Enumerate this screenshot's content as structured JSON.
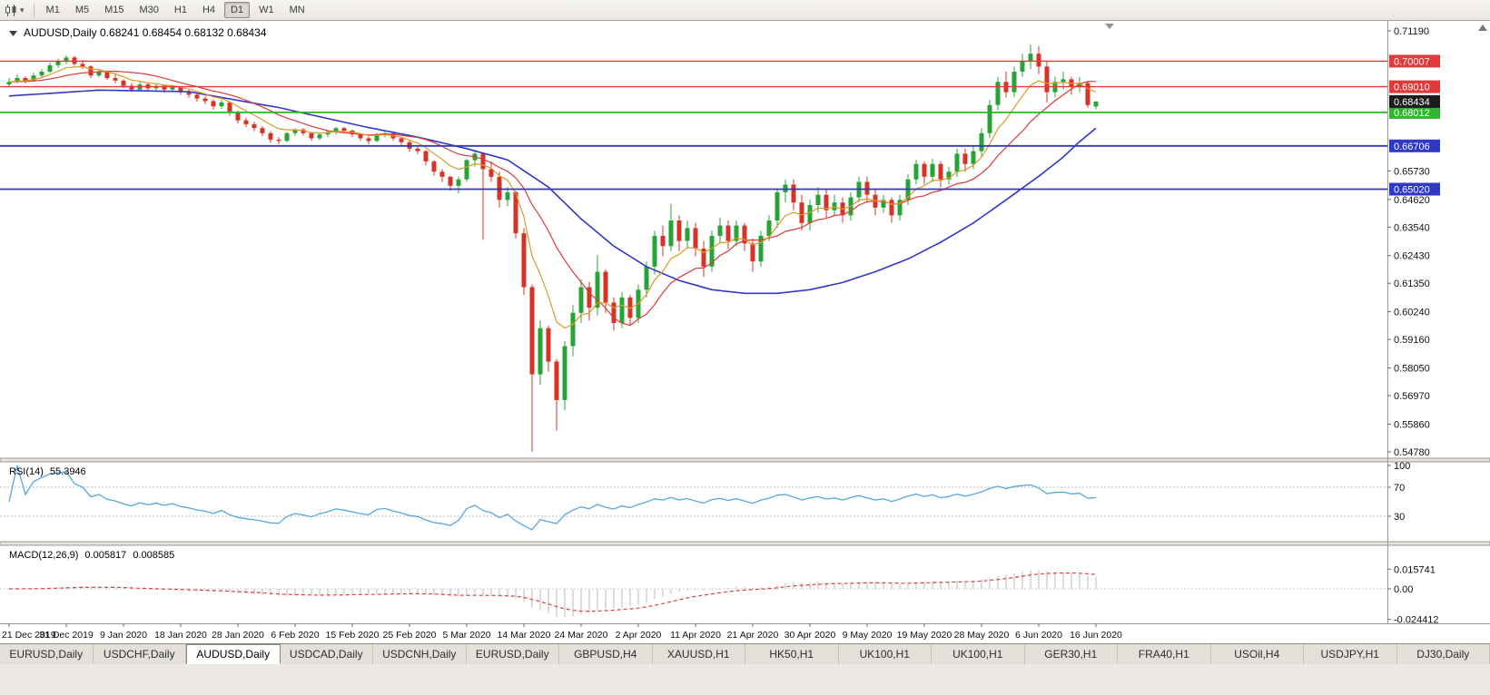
{
  "toolbar": {
    "icons": [
      {
        "name": "candlestick-chart-icon"
      },
      {
        "name": "chart-type-dropdown-caret",
        "glyph": "▾"
      }
    ],
    "timeframes": [
      {
        "label": "M1",
        "active": false
      },
      {
        "label": "M5",
        "active": false
      },
      {
        "label": "M15",
        "active": false
      },
      {
        "label": "M30",
        "active": false
      },
      {
        "label": "H1",
        "active": false
      },
      {
        "label": "H4",
        "active": false
      },
      {
        "label": "D1",
        "active": true
      },
      {
        "label": "W1",
        "active": false
      },
      {
        "label": "MN",
        "active": false
      }
    ]
  },
  "chart_data": {
    "type": "candlestick",
    "symbol": "AUDUSD",
    "period": "Daily",
    "title_text": "AUDUSD,Daily 0.68241 0.68454 0.68132 0.68434",
    "ohlc_display": {
      "open": "0.68241",
      "high": "0.68454",
      "low": "0.68132",
      "close": "0.68434"
    },
    "colors": {
      "bull": "#27a437",
      "bear": "#d63327",
      "background": "#ffffff"
    },
    "y_axis": {
      "max": 0.7119,
      "min": 0.5478,
      "ticks": [
        "0.71190",
        "0.65730",
        "0.64620",
        "0.63540",
        "0.62430",
        "0.61350",
        "0.60240",
        "0.59160",
        "0.58050",
        "0.56970",
        "0.55860",
        "0.54780"
      ]
    },
    "horizontal_lines": [
      {
        "label": "0.70007",
        "price": 0.70007,
        "color": "#e03a3a",
        "width": 1.4
      },
      {
        "label": "0.69010",
        "price": 0.6901,
        "color": "#e03a3a",
        "width": 1.4
      },
      {
        "label": "0.68012",
        "price": 0.68012,
        "color": "#2db52d",
        "width": 1.8
      },
      {
        "label": "0.66706",
        "price": 0.66706,
        "color": "#3038c8",
        "width": 1.8
      },
      {
        "label": "0.65020",
        "price": 0.6502,
        "color": "#3038c8",
        "width": 1.8
      }
    ],
    "price_marker": {
      "label": "0.68434",
      "price": 0.68434,
      "bg": "#1c1c1c"
    },
    "label_every": 7,
    "x_labels": [
      "21 Dec 2019",
      "31 Dec 2019",
      "9 Jan 2020",
      "18 Jan 2020",
      "28 Jan 2020",
      "6 Feb 2020",
      "15 Feb 2020",
      "25 Feb 2020",
      "5 Mar 2020",
      "14 Mar 2020",
      "24 Mar 2020",
      "2 Apr 2020",
      "11 Apr 2020",
      "21 Apr 2020",
      "30 Apr 2020",
      "9 May 2020",
      "19 May 2020",
      "28 May 2020",
      "6 Jun 2020",
      "16 Jun 2020"
    ],
    "candles": [
      [
        0.691,
        0.6935,
        0.69,
        0.692
      ],
      [
        0.692,
        0.695,
        0.6915,
        0.6935
      ],
      [
        0.6935,
        0.6942,
        0.6915,
        0.6925
      ],
      [
        0.6925,
        0.6955,
        0.692,
        0.6945
      ],
      [
        0.6945,
        0.697,
        0.6935,
        0.696
      ],
      [
        0.696,
        0.6995,
        0.6955,
        0.6985
      ],
      [
        0.6985,
        0.701,
        0.6975,
        0.7
      ],
      [
        0.7,
        0.7023,
        0.699,
        0.7015
      ],
      [
        0.7015,
        0.7022,
        0.6985,
        0.699
      ],
      [
        0.699,
        0.7005,
        0.697,
        0.698
      ],
      [
        0.698,
        0.6985,
        0.6935,
        0.6945
      ],
      [
        0.6945,
        0.697,
        0.6938,
        0.696
      ],
      [
        0.696,
        0.6965,
        0.6928,
        0.6935
      ],
      [
        0.6935,
        0.695,
        0.6915,
        0.6925
      ],
      [
        0.6925,
        0.693,
        0.6895,
        0.6905
      ],
      [
        0.6905,
        0.6915,
        0.688,
        0.689
      ],
      [
        0.689,
        0.692,
        0.6885,
        0.691
      ],
      [
        0.691,
        0.6918,
        0.6882,
        0.6895
      ],
      [
        0.6895,
        0.6915,
        0.6887,
        0.6905
      ],
      [
        0.6905,
        0.691,
        0.6878,
        0.689
      ],
      [
        0.689,
        0.6908,
        0.6883,
        0.69
      ],
      [
        0.69,
        0.6905,
        0.687,
        0.688
      ],
      [
        0.688,
        0.689,
        0.6858,
        0.687
      ],
      [
        0.687,
        0.6878,
        0.6843,
        0.6855
      ],
      [
        0.6855,
        0.6865,
        0.6833,
        0.6845
      ],
      [
        0.6845,
        0.6852,
        0.6812,
        0.6825
      ],
      [
        0.6825,
        0.685,
        0.6815,
        0.684
      ],
      [
        0.684,
        0.6845,
        0.6788,
        0.68
      ],
      [
        0.68,
        0.6808,
        0.6758,
        0.677
      ],
      [
        0.677,
        0.678,
        0.6743,
        0.6755
      ],
      [
        0.6755,
        0.6765,
        0.6728,
        0.674
      ],
      [
        0.674,
        0.6748,
        0.6708,
        0.672
      ],
      [
        0.672,
        0.6728,
        0.6683,
        0.6695
      ],
      [
        0.6695,
        0.6705,
        0.6678,
        0.669
      ],
      [
        0.669,
        0.6725,
        0.6685,
        0.672
      ],
      [
        0.672,
        0.674,
        0.671,
        0.6735
      ],
      [
        0.6735,
        0.674,
        0.671,
        0.672
      ],
      [
        0.672,
        0.6725,
        0.669,
        0.67
      ],
      [
        0.67,
        0.672,
        0.6693,
        0.6715
      ],
      [
        0.6715,
        0.673,
        0.6705,
        0.6725
      ],
      [
        0.6725,
        0.6745,
        0.6715,
        0.674
      ],
      [
        0.674,
        0.6745,
        0.672,
        0.673
      ],
      [
        0.673,
        0.6735,
        0.6705,
        0.6715
      ],
      [
        0.6715,
        0.672,
        0.669,
        0.67
      ],
      [
        0.67,
        0.6708,
        0.6678,
        0.669
      ],
      [
        0.669,
        0.672,
        0.6685,
        0.6715
      ],
      [
        0.6715,
        0.6728,
        0.6705,
        0.672
      ],
      [
        0.672,
        0.6725,
        0.669,
        0.67
      ],
      [
        0.67,
        0.6705,
        0.6675,
        0.6685
      ],
      [
        0.6685,
        0.669,
        0.6648,
        0.666
      ],
      [
        0.666,
        0.667,
        0.6638,
        0.665
      ],
      [
        0.665,
        0.6655,
        0.6595,
        0.661
      ],
      [
        0.661,
        0.6615,
        0.6555,
        0.657
      ],
      [
        0.657,
        0.658,
        0.653,
        0.655
      ],
      [
        0.655,
        0.6555,
        0.6495,
        0.6515
      ],
      [
        0.6515,
        0.655,
        0.6485,
        0.654
      ],
      [
        0.654,
        0.662,
        0.653,
        0.6615
      ],
      [
        0.6615,
        0.665,
        0.659,
        0.664
      ],
      [
        0.664,
        0.6645,
        0.6305,
        0.658
      ],
      [
        0.658,
        0.661,
        0.653,
        0.655
      ],
      [
        0.655,
        0.657,
        0.643,
        0.646
      ],
      [
        0.646,
        0.651,
        0.6435,
        0.649
      ],
      [
        0.649,
        0.6495,
        0.631,
        0.633
      ],
      [
        0.633,
        0.635,
        0.609,
        0.612
      ],
      [
        0.612,
        0.613,
        0.5478,
        0.578
      ],
      [
        0.578,
        0.599,
        0.574,
        0.596
      ],
      [
        0.596,
        0.597,
        0.579,
        0.583
      ],
      [
        0.583,
        0.584,
        0.556,
        0.568
      ],
      [
        0.568,
        0.591,
        0.564,
        0.589
      ],
      [
        0.589,
        0.605,
        0.585,
        0.602
      ],
      [
        0.602,
        0.615,
        0.598,
        0.612
      ],
      [
        0.612,
        0.614,
        0.599,
        0.604
      ],
      [
        0.604,
        0.6245,
        0.601,
        0.618
      ],
      [
        0.618,
        0.619,
        0.602,
        0.606
      ],
      [
        0.606,
        0.608,
        0.595,
        0.598
      ],
      [
        0.598,
        0.61,
        0.596,
        0.608
      ],
      [
        0.608,
        0.609,
        0.597,
        0.6
      ],
      [
        0.6,
        0.613,
        0.598,
        0.611
      ],
      [
        0.611,
        0.622,
        0.608,
        0.62
      ],
      [
        0.62,
        0.634,
        0.617,
        0.632
      ],
      [
        0.632,
        0.636,
        0.624,
        0.628
      ],
      [
        0.628,
        0.6445,
        0.626,
        0.638
      ],
      [
        0.638,
        0.64,
        0.626,
        0.63
      ],
      [
        0.63,
        0.638,
        0.627,
        0.635
      ],
      [
        0.635,
        0.637,
        0.624,
        0.627
      ],
      [
        0.627,
        0.63,
        0.616,
        0.62
      ],
      [
        0.62,
        0.634,
        0.618,
        0.632
      ],
      [
        0.632,
        0.639,
        0.629,
        0.636
      ],
      [
        0.636,
        0.638,
        0.627,
        0.63
      ],
      [
        0.63,
        0.638,
        0.628,
        0.636
      ],
      [
        0.636,
        0.637,
        0.626,
        0.629
      ],
      [
        0.629,
        0.631,
        0.618,
        0.622
      ],
      [
        0.622,
        0.634,
        0.62,
        0.632
      ],
      [
        0.632,
        0.64,
        0.63,
        0.638
      ],
      [
        0.638,
        0.65,
        0.635,
        0.649
      ],
      [
        0.649,
        0.654,
        0.645,
        0.652
      ],
      [
        0.652,
        0.654,
        0.642,
        0.645
      ],
      [
        0.645,
        0.648,
        0.634,
        0.637
      ],
      [
        0.637,
        0.646,
        0.634,
        0.644
      ],
      [
        0.644,
        0.651,
        0.641,
        0.648
      ],
      [
        0.648,
        0.65,
        0.639,
        0.642
      ],
      [
        0.642,
        0.648,
        0.64,
        0.645
      ],
      [
        0.645,
        0.647,
        0.637,
        0.64
      ],
      [
        0.64,
        0.649,
        0.638,
        0.647
      ],
      [
        0.647,
        0.655,
        0.645,
        0.653
      ],
      [
        0.653,
        0.655,
        0.645,
        0.648
      ],
      [
        0.648,
        0.65,
        0.64,
        0.643
      ],
      [
        0.643,
        0.648,
        0.641,
        0.646
      ],
      [
        0.646,
        0.647,
        0.637,
        0.64
      ],
      [
        0.64,
        0.648,
        0.638,
        0.646
      ],
      [
        0.646,
        0.656,
        0.644,
        0.654
      ],
      [
        0.654,
        0.6617,
        0.652,
        0.66
      ],
      [
        0.66,
        0.661,
        0.652,
        0.655
      ],
      [
        0.655,
        0.662,
        0.653,
        0.66
      ],
      [
        0.66,
        0.661,
        0.651,
        0.654
      ],
      [
        0.654,
        0.659,
        0.652,
        0.657
      ],
      [
        0.657,
        0.666,
        0.655,
        0.664
      ],
      [
        0.664,
        0.666,
        0.657,
        0.66
      ],
      [
        0.66,
        0.667,
        0.658,
        0.665
      ],
      [
        0.665,
        0.674,
        0.663,
        0.672
      ],
      [
        0.672,
        0.685,
        0.67,
        0.683
      ],
      [
        0.683,
        0.694,
        0.681,
        0.692
      ],
      [
        0.692,
        0.696,
        0.686,
        0.688
      ],
      [
        0.688,
        0.698,
        0.686,
        0.696
      ],
      [
        0.696,
        0.703,
        0.694,
        0.7
      ],
      [
        0.7,
        0.7065,
        0.697,
        0.703
      ],
      [
        0.703,
        0.706,
        0.695,
        0.698
      ],
      [
        0.698,
        0.7,
        0.684,
        0.688
      ],
      [
        0.688,
        0.694,
        0.686,
        0.692
      ],
      [
        0.692,
        0.696,
        0.689,
        0.693
      ],
      [
        0.693,
        0.694,
        0.687,
        0.69
      ],
      [
        0.69,
        0.694,
        0.688,
        0.6915
      ],
      [
        0.6915,
        0.692,
        0.682,
        0.683
      ],
      [
        0.68241,
        0.68454,
        0.68132,
        0.68434
      ]
    ],
    "moving_averages": {
      "fast": {
        "type": "ema",
        "period": 7,
        "color": "#d99b26"
      },
      "medium": {
        "type": "sma",
        "period": 13,
        "color": "#e03a3a"
      },
      "slow": {
        "type": "anchors",
        "color": "#3038c8",
        "points": [
          [
            0,
            0.6865
          ],
          [
            11,
            0.6888
          ],
          [
            22,
            0.6882
          ],
          [
            33,
            0.682
          ],
          [
            44,
            0.6742
          ],
          [
            50,
            0.6705
          ],
          [
            56,
            0.666
          ],
          [
            61,
            0.6616
          ],
          [
            66,
            0.651
          ],
          [
            70,
            0.6386
          ],
          [
            74,
            0.628
          ],
          [
            78,
            0.62
          ],
          [
            82,
            0.6146
          ],
          [
            86,
            0.611
          ],
          [
            90,
            0.6096
          ],
          [
            94,
            0.6096
          ],
          [
            98,
            0.611
          ],
          [
            102,
            0.6138
          ],
          [
            106,
            0.618
          ],
          [
            110,
            0.623
          ],
          [
            114,
            0.6295
          ],
          [
            118,
            0.637
          ],
          [
            122,
            0.646
          ],
          [
            126,
            0.6552
          ],
          [
            129,
            0.6627
          ],
          [
            131,
            0.6687
          ],
          [
            133,
            0.674
          ]
        ]
      }
    },
    "rsi": {
      "name": "RSI(14)",
      "value": "55.3946",
      "period": 14,
      "color": "#57a7de",
      "levels": [
        70,
        30
      ],
      "scale_labels": [
        "100",
        "70",
        "30"
      ]
    },
    "macd": {
      "name": "MACD(12,26,9)",
      "value_main": "0.005817",
      "value_signal": "0.008585",
      "fast": 12,
      "slow": 26,
      "signal": 9,
      "hist_color": "#b9b9b9",
      "signal_color": "#dd4040",
      "scale_labels": [
        "0.015741",
        "0.00",
        "-0.024412"
      ]
    }
  },
  "tabs": [
    {
      "label": "EURUSD,Daily",
      "active": false
    },
    {
      "label": "USDCHF,Daily",
      "active": false
    },
    {
      "label": "AUDUSD,Daily",
      "active": true
    },
    {
      "label": "USDCAD,Daily",
      "active": false
    },
    {
      "label": "USDCNH,Daily",
      "active": false
    },
    {
      "label": "EURUSD,Daily",
      "active": false
    },
    {
      "label": "GBPUSD,H4",
      "active": false
    },
    {
      "label": "XAUUSD,H1",
      "active": false
    },
    {
      "label": "HK50,H1",
      "active": false
    },
    {
      "label": "UK100,H1",
      "active": false
    },
    {
      "label": "UK100,H1",
      "active": false
    },
    {
      "label": "GER30,H1",
      "active": false
    },
    {
      "label": "FRA40,H1",
      "active": false
    },
    {
      "label": "USOil,H4",
      "active": false
    },
    {
      "label": "USDJPY,H1",
      "active": false
    },
    {
      "label": "DJ30,Daily",
      "active": false
    }
  ]
}
